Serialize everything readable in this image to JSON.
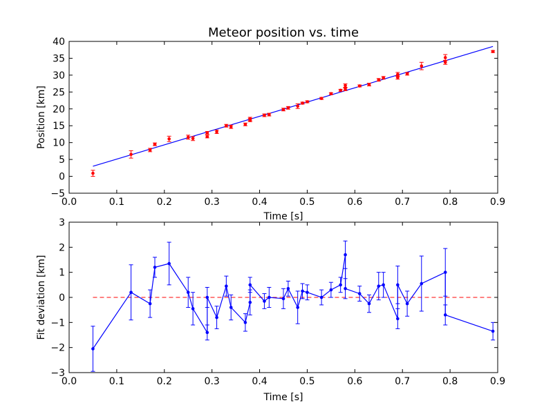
{
  "chart_data": [
    {
      "type": "scatter",
      "title": "Meteor position vs. time",
      "xlabel": "Time [s]",
      "ylabel": "Position [km]",
      "xlim": [
        0.0,
        0.9
      ],
      "ylim": [
        -5,
        40
      ],
      "xticks": [
        "0.0",
        "0.1",
        "0.2",
        "0.3",
        "0.4",
        "0.5",
        "0.6",
        "0.7",
        "0.8",
        "0.9"
      ],
      "yticks": [
        "−5",
        "0",
        "5",
        "10",
        "15",
        "20",
        "25",
        "30",
        "35",
        "40"
      ],
      "xtick_values": [
        0.0,
        0.1,
        0.2,
        0.3,
        0.4,
        0.5,
        0.6,
        0.7,
        0.8,
        0.9
      ],
      "ytick_values": [
        -5,
        0,
        5,
        10,
        15,
        20,
        25,
        30,
        35,
        40
      ],
      "grid": false,
      "colors": {
        "points": "#ff0000",
        "fit": "#0000ff",
        "errorbar": "#ff0000"
      },
      "series": [
        {
          "style": "points-with-errorbars",
          "x": [
            0.05,
            0.13,
            0.17,
            0.18,
            0.21,
            0.25,
            0.26,
            0.29,
            0.29,
            0.31,
            0.33,
            0.34,
            0.37,
            0.38,
            0.38,
            0.41,
            0.42,
            0.45,
            0.46,
            0.48,
            0.49,
            0.5,
            0.53,
            0.55,
            0.57,
            0.58,
            0.58,
            0.61,
            0.63,
            0.65,
            0.66,
            0.69,
            0.69,
            0.71,
            0.74,
            0.79,
            0.79,
            0.89
          ],
          "y": [
            0.9,
            6.5,
            7.8,
            9.5,
            11.1,
            11.6,
            11.2,
            11.8,
            12.9,
            13.2,
            15.0,
            14.7,
            15.4,
            16.7,
            17.0,
            18.1,
            18.3,
            19.8,
            20.3,
            20.8,
            21.7,
            22.1,
            23.1,
            24.5,
            25.5,
            26.9,
            25.8,
            26.8,
            27.2,
            28.6,
            29.2,
            29.3,
            30.2,
            30.4,
            32.7,
            35.2,
            33.8,
            37.0
          ],
          "yerr": [
            0.9,
            1.1,
            0.5,
            0.4,
            0.8,
            0.6,
            0.6,
            0.4,
            0.4,
            0.5,
            0.4,
            0.5,
            0.4,
            0.5,
            0.5,
            0.4,
            0.4,
            0.4,
            0.4,
            0.7,
            0.3,
            0.3,
            0.3,
            0.3,
            0.3,
            0.5,
            0.4,
            0.3,
            0.4,
            0.4,
            0.4,
            0.5,
            0.6,
            0.4,
            1.1,
            0.9,
            0.6,
            0.3
          ]
        },
        {
          "style": "fit-line",
          "x": [
            0.05,
            0.89
          ],
          "y": [
            3.0,
            38.5
          ]
        }
      ]
    },
    {
      "type": "line",
      "title": "",
      "xlabel": "Time [s]",
      "ylabel": "Fit deviation [km]",
      "xlim": [
        0.0,
        0.9
      ],
      "ylim": [
        -3,
        3
      ],
      "xticks": [
        "0.0",
        "0.1",
        "0.2",
        "0.3",
        "0.4",
        "0.5",
        "0.6",
        "0.7",
        "0.8",
        "0.9"
      ],
      "yticks": [
        "−3",
        "−2",
        "−1",
        "0",
        "1",
        "2",
        "3"
      ],
      "xtick_values": [
        0.0,
        0.1,
        0.2,
        0.3,
        0.4,
        0.5,
        0.6,
        0.7,
        0.8,
        0.9
      ],
      "ytick_values": [
        -3,
        -2,
        -1,
        0,
        1,
        2,
        3
      ],
      "grid": false,
      "colors": {
        "series": "#0000ff",
        "reference": "#ff0000"
      },
      "reference_line": {
        "y": 0,
        "style": "dashed"
      },
      "series": [
        {
          "style": "line-with-errorbars",
          "x": [
            0.05,
            0.13,
            0.17,
            0.18,
            0.21,
            0.25,
            0.26,
            0.29,
            0.29,
            0.31,
            0.33,
            0.34,
            0.37,
            0.38,
            0.38,
            0.41,
            0.42,
            0.45,
            0.46,
            0.48,
            0.49,
            0.5,
            0.53,
            0.55,
            0.57,
            0.58,
            0.58,
            0.61,
            0.63,
            0.65,
            0.66,
            0.69,
            0.69,
            0.71,
            0.74,
            0.79,
            0.79,
            0.89
          ],
          "y": [
            -2.05,
            0.2,
            -0.25,
            1.2,
            1.35,
            0.2,
            -0.45,
            -1.4,
            0.0,
            -0.8,
            0.45,
            -0.4,
            -1.0,
            -0.2,
            0.5,
            -0.15,
            0.0,
            -0.05,
            0.35,
            -0.4,
            0.25,
            0.2,
            0.0,
            0.3,
            0.5,
            1.7,
            0.35,
            0.15,
            -0.25,
            0.45,
            0.5,
            -0.85,
            0.5,
            -0.25,
            0.55,
            1.0,
            -0.7,
            -1.35
          ],
          "yerr": [
            0.9,
            1.1,
            0.55,
            0.4,
            0.85,
            0.6,
            0.65,
            0.3,
            0.4,
            0.45,
            0.4,
            0.5,
            0.35,
            0.5,
            0.3,
            0.3,
            0.4,
            0.4,
            0.3,
            0.65,
            0.3,
            0.3,
            0.3,
            0.3,
            0.3,
            0.55,
            0.4,
            0.3,
            0.35,
            0.55,
            0.5,
            0.4,
            0.75,
            0.5,
            1.1,
            0.95,
            0.4,
            0.35
          ]
        }
      ]
    }
  ]
}
